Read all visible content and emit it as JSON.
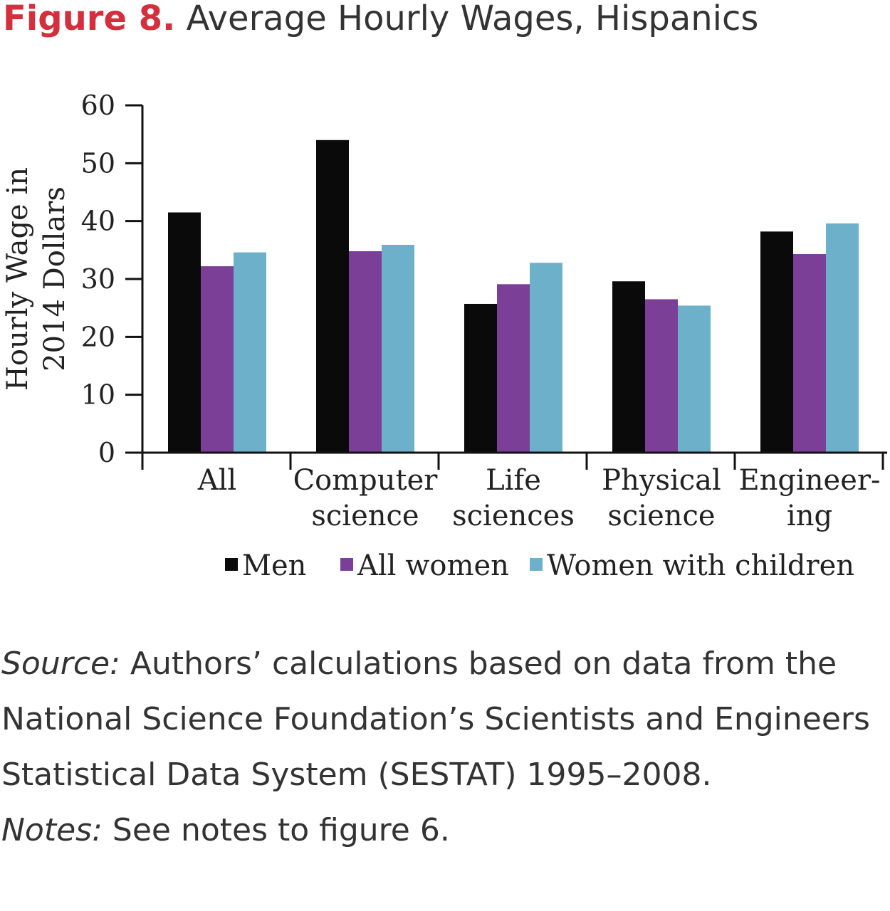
{
  "header": {
    "figure_label": "Figure 8.",
    "figure_title": "Average Hourly Wages, Hispanics"
  },
  "chart_data": {
    "type": "bar",
    "title": "Average Hourly Wages, Hispanics",
    "ylabel_lines": [
      "Hourly Wage in",
      "2014 Dollars"
    ],
    "xlabel": "",
    "ylim": [
      0,
      60
    ],
    "yticks": [
      0,
      10,
      20,
      30,
      40,
      50,
      60
    ],
    "grid": false,
    "legend_position": "bottom",
    "categories": [
      [
        "All"
      ],
      [
        "Computer",
        "science"
      ],
      [
        "Life",
        "sciences"
      ],
      [
        "Physical",
        "science"
      ],
      [
        "Engineer-",
        "ing"
      ]
    ],
    "series": [
      {
        "name": "Men",
        "color": "#0a0a0a",
        "values": [
          41.5,
          54.0,
          25.7,
          29.6,
          38.2
        ]
      },
      {
        "name": "All women",
        "color": "#7b3f98",
        "values": [
          32.2,
          34.8,
          29.1,
          26.5,
          34.3
        ]
      },
      {
        "name": "Women with children",
        "color": "#6cb1c9",
        "values": [
          34.6,
          35.9,
          32.8,
          25.4,
          39.6
        ]
      }
    ]
  },
  "source": {
    "source_label": "Source:",
    "source_text": " Authors’ calculations based on data from the National Science Foundation’s Scientists and Engineers Statistical Data System (SESTAT) 1995–2008.",
    "notes_label": "Notes:",
    "notes_text": " See notes to figure 6."
  }
}
